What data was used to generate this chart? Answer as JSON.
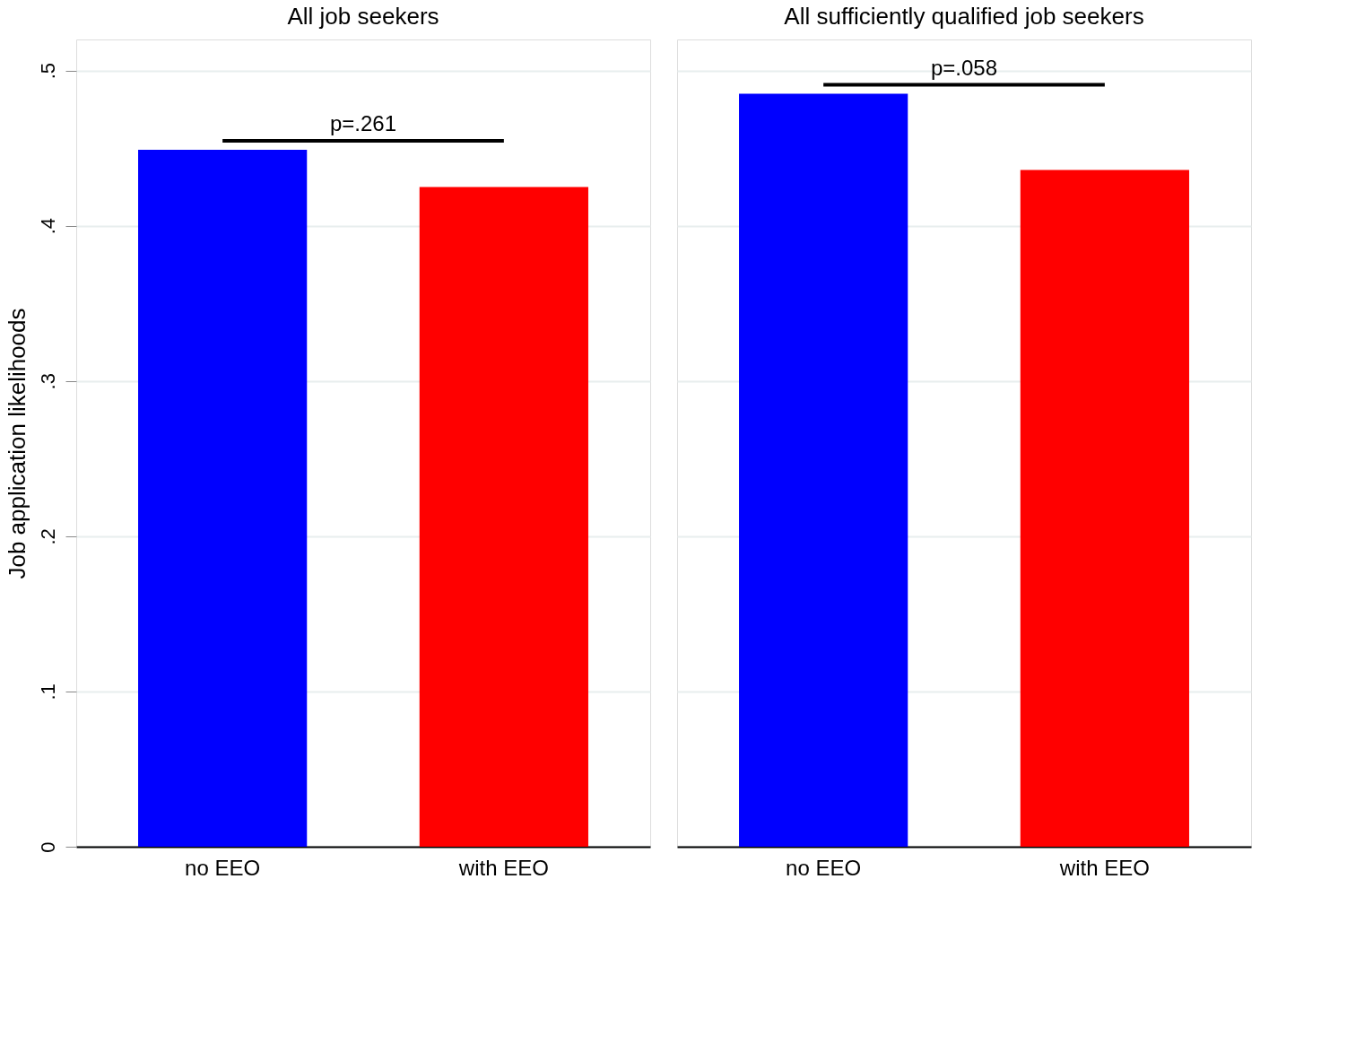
{
  "chart_data": [
    {
      "type": "bar",
      "title": "All job seekers",
      "ylabel": "Job application likelihoods",
      "categories": [
        "no EEO",
        "with EEO"
      ],
      "values": [
        0.449,
        0.425
      ],
      "colors": [
        "#0000ff",
        "#ff0000"
      ],
      "ylim": [
        0,
        0.52
      ],
      "yticks": [
        {
          "value": 0,
          "label": "0"
        },
        {
          "value": 0.1,
          "label": ".1"
        },
        {
          "value": 0.2,
          "label": ".2"
        },
        {
          "value": 0.3,
          "label": ".3"
        },
        {
          "value": 0.4,
          "label": ".4"
        },
        {
          "value": 0.5,
          "label": ".5"
        }
      ],
      "grid": "y",
      "annotations": [
        "p=.261"
      ]
    },
    {
      "type": "bar",
      "title": "All sufficiently qualified job seekers",
      "categories": [
        "no EEO",
        "with EEO"
      ],
      "values": [
        0.485,
        0.436
      ],
      "colors": [
        "#0000ff",
        "#ff0000"
      ],
      "ylim": [
        0,
        0.52
      ],
      "yticks": [
        0,
        0.1,
        0.2,
        0.3,
        0.4,
        0.5
      ],
      "grid": "y",
      "tick_labels": "x",
      "annotations": [
        "p=.058"
      ]
    }
  ]
}
